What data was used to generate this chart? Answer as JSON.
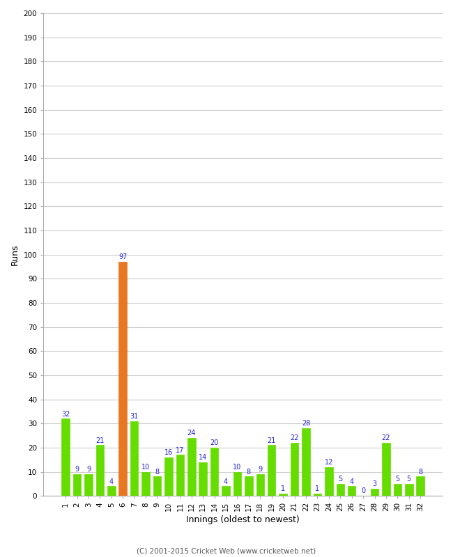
{
  "innings": [
    1,
    2,
    3,
    4,
    5,
    6,
    7,
    8,
    9,
    10,
    11,
    12,
    13,
    14,
    15,
    16,
    17,
    18,
    19,
    20,
    21,
    22,
    23,
    24,
    25,
    26,
    27,
    28,
    29,
    30,
    31,
    32
  ],
  "runs": [
    32,
    9,
    9,
    21,
    4,
    97,
    31,
    10,
    8,
    16,
    17,
    24,
    14,
    20,
    4,
    10,
    8,
    9,
    21,
    1,
    22,
    28,
    1,
    12,
    5,
    4,
    0,
    3,
    22,
    5,
    5,
    8
  ],
  "bar_colors": [
    "#66dd00",
    "#66dd00",
    "#66dd00",
    "#66dd00",
    "#66dd00",
    "#e87722",
    "#66dd00",
    "#66dd00",
    "#66dd00",
    "#66dd00",
    "#66dd00",
    "#66dd00",
    "#66dd00",
    "#66dd00",
    "#66dd00",
    "#66dd00",
    "#66dd00",
    "#66dd00",
    "#66dd00",
    "#66dd00",
    "#66dd00",
    "#66dd00",
    "#66dd00",
    "#66dd00",
    "#66dd00",
    "#66dd00",
    "#66dd00",
    "#66dd00",
    "#66dd00",
    "#66dd00",
    "#66dd00",
    "#66dd00"
  ],
  "label_color": "#2222cc",
  "xlabel": "Innings (oldest to newest)",
  "ylabel": "Runs",
  "ylim": [
    0,
    200
  ],
  "yticks": [
    0,
    10,
    20,
    30,
    40,
    50,
    60,
    70,
    80,
    90,
    100,
    110,
    120,
    130,
    140,
    150,
    160,
    170,
    180,
    190,
    200
  ],
  "footer": "(C) 2001-2015 Cricket Web (www.cricketweb.net)",
  "bg_color": "#ffffff",
  "grid_color": "#cccccc",
  "bar_width": 0.7,
  "tick_fontsize": 7.5,
  "label_fontsize": 7,
  "axis_label_fontsize": 9,
  "footer_fontsize": 7.5
}
